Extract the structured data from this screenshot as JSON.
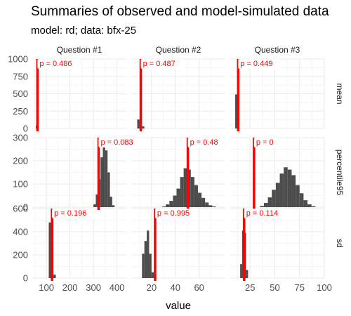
{
  "chart_data": {
    "type": "bar",
    "title": "Summaries of observed and model-simulated data",
    "subtitle": "model: rd; data: bfx-25",
    "xlabel": "value",
    "ylabel": "",
    "columns": [
      "Question #1",
      "Question #2",
      "Question #3"
    ],
    "rows": [
      "mean",
      "percentile95",
      "sd"
    ],
    "observed_color": "#ff0000",
    "bar_color": "#4d4d4d",
    "grid": true,
    "row_scales": {
      "mean": {
        "ylim": [
          0,
          1000
        ],
        "yticks": [
          0,
          250,
          500,
          750,
          1000
        ]
      },
      "percentile95": {
        "ylim": [
          0,
          300
        ],
        "yticks": [
          0,
          100,
          200,
          300
        ]
      },
      "sd": {
        "ylim": [
          0,
          600
        ],
        "yticks": [
          0,
          200,
          400,
          600
        ]
      }
    },
    "col_scales": {
      "Question #1": {
        "xlim": [
          40,
          440
        ],
        "xticks": [
          100,
          200,
          300,
          400
        ]
      },
      "Question #2": {
        "xlim": [
          3,
          82
        ],
        "xticks": [
          20,
          40,
          60
        ]
      },
      "Question #3": {
        "xlim": [
          5,
          100
        ],
        "xticks": [
          25,
          50,
          75,
          100
        ]
      }
    },
    "panels": [
      {
        "row": "mean",
        "col": "Question #1",
        "binwidth": 5,
        "bins": [
          [
            55,
            45
          ],
          [
            60,
            860
          ]
        ],
        "observed": 62,
        "p_label": "p = 0.486"
      },
      {
        "row": "mean",
        "col": "Question #2",
        "binwidth": 2,
        "bins": [
          [
            8,
            130
          ],
          [
            10,
            50
          ],
          [
            12,
            30
          ]
        ],
        "observed": 11,
        "p_label": "p = 0.487"
      },
      {
        "row": "mean",
        "col": "Question #3",
        "binwidth": 2,
        "bins": [
          [
            10,
            490
          ],
          [
            12,
            500
          ]
        ],
        "observed": 13,
        "p_label": "p = 0.449"
      },
      {
        "row": "percentile95",
        "col": "Question #1",
        "binwidth": 10,
        "bins": [
          [
            300,
            12
          ],
          [
            310,
            55
          ],
          [
            320,
            120
          ],
          [
            330,
            215
          ],
          [
            340,
            275
          ],
          [
            350,
            245
          ],
          [
            360,
            150
          ],
          [
            370,
            45
          ],
          [
            380,
            8
          ]
        ],
        "observed": 322,
        "p_label": "p = 0.083"
      },
      {
        "row": "percentile95",
        "col": "Question #2",
        "binwidth": 3,
        "bins": [
          [
            29,
            3
          ],
          [
            32,
            12
          ],
          [
            35,
            27
          ],
          [
            38,
            50
          ],
          [
            41,
            80
          ],
          [
            44,
            130
          ],
          [
            47,
            168
          ],
          [
            50,
            162
          ],
          [
            53,
            130
          ],
          [
            56,
            95
          ],
          [
            59,
            62
          ],
          [
            62,
            40
          ],
          [
            65,
            20
          ],
          [
            68,
            8
          ],
          [
            71,
            3
          ]
        ],
        "observed": 50.5,
        "p_label": "p = 0.48"
      },
      {
        "row": "percentile95",
        "col": "Question #3",
        "binwidth": 4,
        "bins": [
          [
            35,
            5
          ],
          [
            39,
            18
          ],
          [
            43,
            42
          ],
          [
            47,
            75
          ],
          [
            51,
            105
          ],
          [
            55,
            145
          ],
          [
            59,
            172
          ],
          [
            63,
            162
          ],
          [
            67,
            138
          ],
          [
            71,
            95
          ],
          [
            75,
            60
          ],
          [
            79,
            30
          ],
          [
            83,
            12
          ],
          [
            87,
            4
          ]
        ],
        "observed": 29,
        "p_label": "p = 0"
      },
      {
        "row": "sd",
        "col": "Question #1",
        "binwidth": 10,
        "bins": [
          [
            110,
            480
          ],
          [
            120,
            520
          ],
          [
            130,
            30
          ]
        ],
        "observed": 124,
        "p_label": "p = 0.196"
      },
      {
        "row": "sd",
        "col": "Question #2",
        "binwidth": 2,
        "bins": [
          [
            12,
            210
          ],
          [
            14,
            320
          ],
          [
            16,
            410
          ],
          [
            18,
            210
          ],
          [
            20,
            50
          ],
          [
            22,
            20
          ]
        ],
        "observed": 23,
        "p_label": "p = 0.995"
      },
      {
        "row": "sd",
        "col": "Question #3",
        "binwidth": 2,
        "bins": [
          [
            15,
            120
          ],
          [
            17,
            410
          ],
          [
            19,
            390
          ],
          [
            21,
            70
          ]
        ],
        "observed": 19,
        "p_label": "p = 0.114"
      }
    ]
  }
}
